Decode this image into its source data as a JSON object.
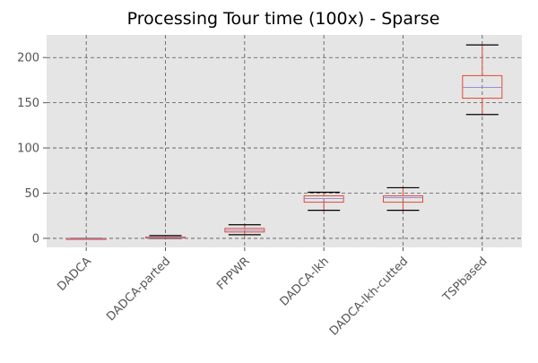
{
  "chart_data": {
    "type": "box",
    "title": "Processing Tour time (100x) - Sparse",
    "categories": [
      "DADCA",
      "DADCA-parted",
      "FPPWR",
      "DADCA-lkh",
      "DADCA-lkh-cutted",
      "TSPbased"
    ],
    "series": [
      {
        "whisker_low": 0,
        "q1": 0,
        "median": 0,
        "q3": 0,
        "whisker_high": 0
      },
      {
        "whisker_low": 0,
        "q1": 0.5,
        "median": 1,
        "q3": 1.5,
        "whisker_high": 3
      },
      {
        "whisker_low": 4,
        "q1": 7,
        "median": 9,
        "q3": 11,
        "whisker_high": 15
      },
      {
        "whisker_low": 31,
        "q1": 40,
        "median": 44,
        "q3": 47,
        "whisker_high": 51
      },
      {
        "whisker_low": 31,
        "q1": 40,
        "median": 45,
        "q3": 47,
        "whisker_high": 56
      },
      {
        "whisker_low": 137,
        "q1": 155,
        "median": 167,
        "q3": 180,
        "whisker_high": 214
      }
    ],
    "xlabel": "",
    "ylabel": "",
    "ylim": [
      -10,
      225
    ],
    "yticks": [
      0,
      50,
      100,
      150,
      200
    ],
    "grid": true,
    "legend": "none",
    "colors": {
      "plot_background": "#e5e5e5",
      "grid": "#555555",
      "box": "#e24a33",
      "median": "#988ed5",
      "whisker_cap": "#000000",
      "tick_label": "#555555"
    }
  }
}
